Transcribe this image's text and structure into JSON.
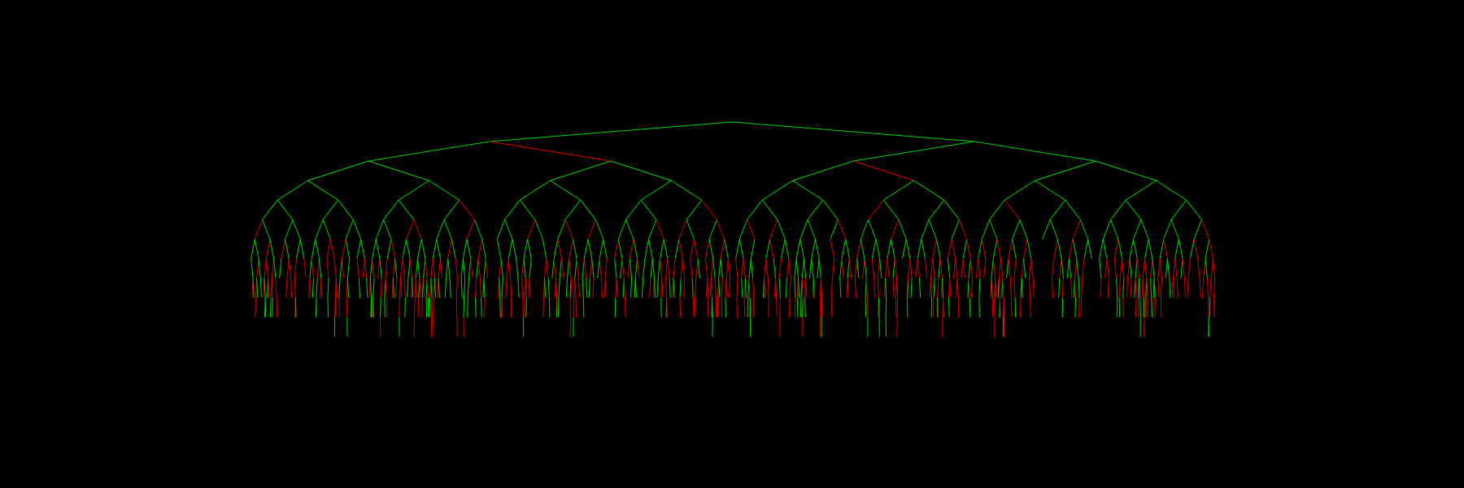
{
  "diagram": {
    "type": "binary-tree",
    "depth": 11,
    "colors": {
      "background": "#000000",
      "branch_primary": "#00d200",
      "branch_secondary": "#d20000"
    }
  }
}
